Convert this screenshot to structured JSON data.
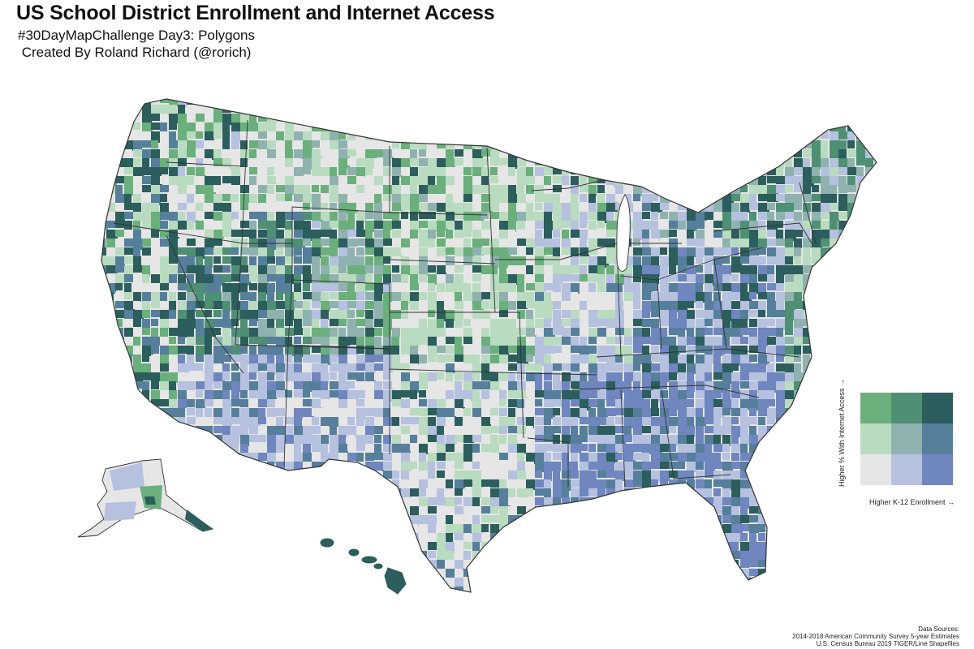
{
  "header": {
    "title": "US School District Enrollment and Internet Access",
    "subtitle_line1": "#30DayMapChallenge Day3: Polygons",
    "subtitle_line2": " Created By Roland Richard (@rorich)"
  },
  "legend": {
    "y_label": "Higher % With Internet Access →",
    "x_label": "Higher K-12 Enrollment →",
    "grid_colors": [
      [
        "#6aaf7c",
        "#4f8f74",
        "#2b5e5c"
      ],
      [
        "#b9dbbf",
        "#8fb2b0",
        "#557f9b"
      ],
      [
        "#e6e6e6",
        "#b5c1df",
        "#6f86be"
      ]
    ]
  },
  "map": {
    "region_colors": {
      "water_bg": "#ffffff",
      "low_low": "#e6e6e6",
      "low_mid": "#b5c1df",
      "low_high": "#6f86be",
      "mid_low": "#b9dbbf",
      "mid_mid": "#8fb2b0",
      "mid_high": "#557f9b",
      "high_low": "#6aaf7c",
      "high_mid": "#4f8f74",
      "high_high": "#2b5e5c"
    },
    "border_color": "#333333"
  },
  "sources": {
    "line1": "Data Sources:",
    "line2": "2014-2018 American Community Survey 5-year Estimates",
    "line3": "U.S. Census Bureau 2019 TIGER/Line Shapefiles"
  }
}
